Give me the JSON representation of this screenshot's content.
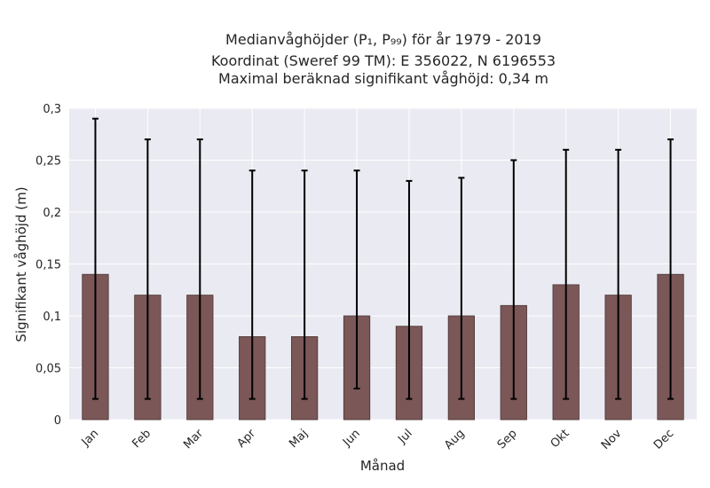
{
  "chart_data": {
    "type": "bar",
    "title_lines": [
      "Medianvåghöjder (P₁, P₉₉) för år 1979 - 2019",
      "Koordinat (Sweref 99 TM): E 356022, N 6196553",
      "Maximal beräknad signifikant våghöjd: 0,34 m"
    ],
    "xlabel": "Månad",
    "ylabel": "Signifikant våghöjd (m)",
    "categories": [
      "Jan",
      "Feb",
      "Mar",
      "Apr",
      "Maj",
      "Jun",
      "Jul",
      "Aug",
      "Sep",
      "Okt",
      "Nov",
      "Dec"
    ],
    "values": [
      0.14,
      0.12,
      0.12,
      0.08,
      0.08,
      0.1,
      0.09,
      0.1,
      0.11,
      0.13,
      0.12,
      0.14
    ],
    "error_low": [
      0.02,
      0.02,
      0.02,
      0.02,
      0.02,
      0.03,
      0.02,
      0.02,
      0.02,
      0.02,
      0.02,
      0.02
    ],
    "error_high": [
      0.29,
      0.27,
      0.27,
      0.24,
      0.24,
      0.24,
      0.23,
      0.233,
      0.25,
      0.26,
      0.26,
      0.27
    ],
    "ylim": [
      0,
      0.3
    ],
    "yticks": [
      0,
      0.05,
      0.1,
      0.15,
      0.2,
      0.25,
      0.3
    ],
    "ytick_labels": [
      "0",
      "0,05",
      "0,1",
      "0,15",
      "0,2",
      "0,25",
      "0,3"
    ],
    "grid": true,
    "colors": {
      "bar": "#7b5757",
      "bar_edge": "#4a3535",
      "plot_background": "#eaeaf2",
      "grid": "#ffffff",
      "errorbar": "#000000"
    }
  }
}
